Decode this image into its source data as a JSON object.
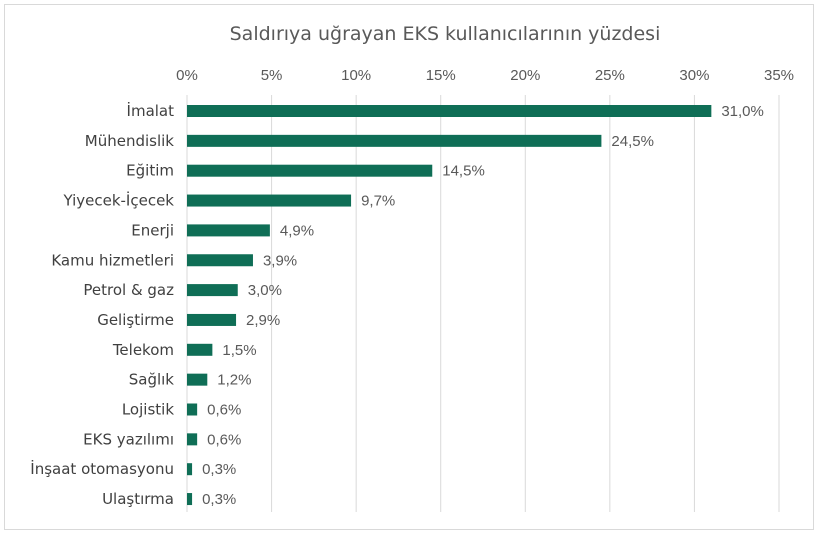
{
  "chart_data": {
    "type": "bar",
    "orientation": "horizontal",
    "title": "Saldırıya uğrayan EKS kullanıcılarının yüzdesi",
    "xlabel": "",
    "ylabel": "",
    "xlim": [
      0,
      35
    ],
    "x_ticks": [
      "0%",
      "5%",
      "10%",
      "15%",
      "20%",
      "25%",
      "30%",
      "35%"
    ],
    "x_tick_values": [
      0,
      5,
      10,
      15,
      20,
      25,
      30,
      35
    ],
    "grid": true,
    "legend": "none",
    "categories": [
      "İmalat",
      "Mühendislik",
      "Eğitim",
      "Yiyecek-İçecek",
      "Enerji",
      "Kamu hizmetleri",
      "Petrol & gaz",
      "Geliştirme",
      "Telekom",
      "Sağlık",
      "Lojistik",
      "EKS yazılımı",
      "İnşaat otomasyonu",
      "Ulaştırma"
    ],
    "values": [
      31.0,
      24.5,
      14.5,
      9.7,
      4.9,
      3.9,
      3.0,
      2.9,
      1.5,
      1.2,
      0.6,
      0.6,
      0.3,
      0.3
    ],
    "data_labels": [
      "31,0%",
      "24,5%",
      "14,5%",
      "9,7%",
      "4,9%",
      "3,9%",
      "3,0%",
      "2,9%",
      "1,5%",
      "1,2%",
      "0,6%",
      "0,6%",
      "0,3%",
      "0,3%"
    ],
    "colors": {
      "bar": "#0f6e56",
      "grid": "#d9d9d9",
      "text": "#595959"
    }
  }
}
